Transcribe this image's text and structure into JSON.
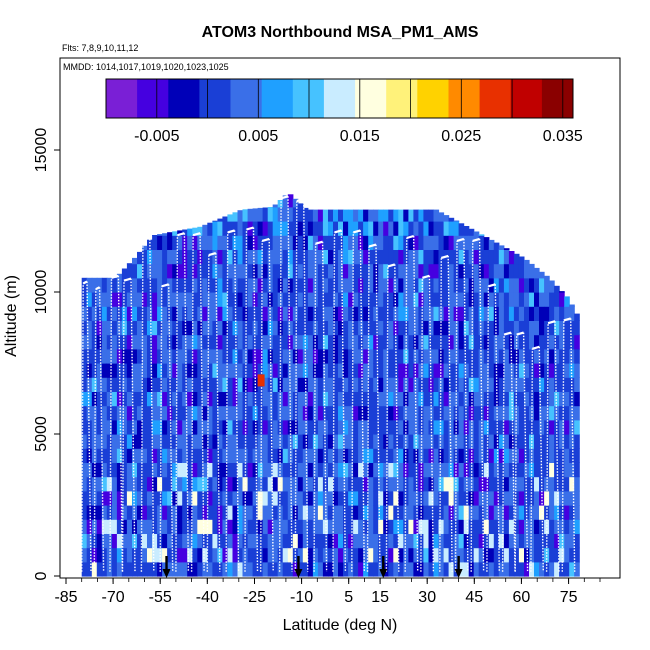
{
  "chart_data": {
    "type": "heatmap",
    "title": "ATOM3 Northbound MSA_PM1_AMS",
    "flights_label": "Flts: 7,8,9,10,11,12",
    "mmdd_label": "MMDD: 1014,1017,1019,1020,1023,1025",
    "xlabel": "Latitude (deg N)",
    "ylabel": "Altitude (m)",
    "xlim": [
      -85,
      85
    ],
    "ylim": [
      0,
      17500
    ],
    "x_ticks": [
      -85,
      -70,
      -55,
      -40,
      -25,
      -10,
      5,
      15,
      30,
      45,
      60,
      75
    ],
    "y_ticks": [
      0,
      5000,
      10000,
      15000
    ],
    "colorbar": {
      "range": [
        -0.01,
        0.036
      ],
      "ticks": [
        -0.005,
        0.005,
        0.015,
        0.025,
        0.035
      ],
      "tick_labels": [
        "-0.005",
        "0.005",
        "0.015",
        "0.025",
        "0.035"
      ],
      "colors": [
        "#7a1fd6",
        "#4500e0",
        "#0000b8",
        "#1a3fd6",
        "#3a6fe8",
        "#1fa0ff",
        "#46c2ff",
        "#c9ecff",
        "#ffffe0",
        "#fff27a",
        "#ffd200",
        "#ff8a00",
        "#e83000",
        "#c00000",
        "#8a0000"
      ]
    },
    "envelope": [
      {
        "lat": -80,
        "top": 10500
      },
      {
        "lat": -70,
        "top": 10500
      },
      {
        "lat": -64,
        "top": 11200
      },
      {
        "lat": -58,
        "top": 12000
      },
      {
        "lat": -43,
        "top": 12300
      },
      {
        "lat": -30,
        "top": 12900
      },
      {
        "lat": -20,
        "top": 13000
      },
      {
        "lat": -15,
        "top": 13500
      },
      {
        "lat": -9,
        "top": 12900
      },
      {
        "lat": 32,
        "top": 12900
      },
      {
        "lat": 42,
        "top": 12300
      },
      {
        "lat": 60,
        "top": 11200
      },
      {
        "lat": 68,
        "top": 10500
      },
      {
        "lat": 74,
        "top": 9800
      },
      {
        "lat": 78,
        "top": 9000
      }
    ],
    "profiles": [
      {
        "lat0": -80,
        "lat1": -78,
        "top": 10300
      },
      {
        "lat0": -76,
        "lat1": -74,
        "top": 10100
      },
      {
        "lat0": -71,
        "lat1": -68,
        "top": 10500
      },
      {
        "lat0": -67,
        "lat1": -64,
        "top": 10400
      },
      {
        "lat0": -61,
        "lat1": -58,
        "top": 11900
      },
      {
        "lat0": -55,
        "lat1": -52,
        "top": 10200
      },
      {
        "lat0": -50,
        "lat1": -47,
        "top": 12000
      },
      {
        "lat0": -45,
        "lat1": -42,
        "top": 12000
      },
      {
        "lat0": -40,
        "lat1": -37,
        "top": 11300
      },
      {
        "lat0": -34,
        "lat1": -31,
        "top": 12100
      },
      {
        "lat0": -28,
        "lat1": -25,
        "top": 12200
      },
      {
        "lat0": -23,
        "lat1": -20,
        "top": 11800
      },
      {
        "lat0": -17,
        "lat1": -14,
        "top": 13300
      },
      {
        "lat0": -12,
        "lat1": -9,
        "top": 13200
      },
      {
        "lat0": -6,
        "lat1": -3,
        "top": 11700
      },
      {
        "lat0": 0,
        "lat1": 3,
        "top": 12100
      },
      {
        "lat0": 6,
        "lat1": 9,
        "top": 12100
      },
      {
        "lat0": 11,
        "lat1": 14,
        "top": 11600
      },
      {
        "lat0": 17,
        "lat1": 20,
        "top": 10900
      },
      {
        "lat0": 23,
        "lat1": 26,
        "top": 11900
      },
      {
        "lat0": 28,
        "lat1": 31,
        "top": 10500
      },
      {
        "lat0": 34,
        "lat1": 37,
        "top": 11200
      },
      {
        "lat0": 39,
        "lat1": 42,
        "top": 11800
      },
      {
        "lat0": 44,
        "lat1": 47,
        "top": 11800
      },
      {
        "lat0": 49,
        "lat1": 52,
        "top": 10200
      },
      {
        "lat0": 54,
        "lat1": 57,
        "top": 8500
      },
      {
        "lat0": 58,
        "lat1": 61,
        "top": 8500
      },
      {
        "lat0": 63,
        "lat1": 66,
        "top": 8000
      },
      {
        "lat0": 68,
        "lat1": 71,
        "top": 8900
      },
      {
        "lat0": 73,
        "lat1": 76,
        "top": 9000
      }
    ],
    "hotspot": {
      "lat": -24,
      "alt": 6800,
      "value": 0.028
    },
    "arrow_lats": [
      -53,
      -11,
      16,
      40
    ],
    "value_pattern": "mostly 0.0 to 0.008 (blue), scattered dark-blue minima near -0.005, light bands near 0.015 at low altitude"
  }
}
